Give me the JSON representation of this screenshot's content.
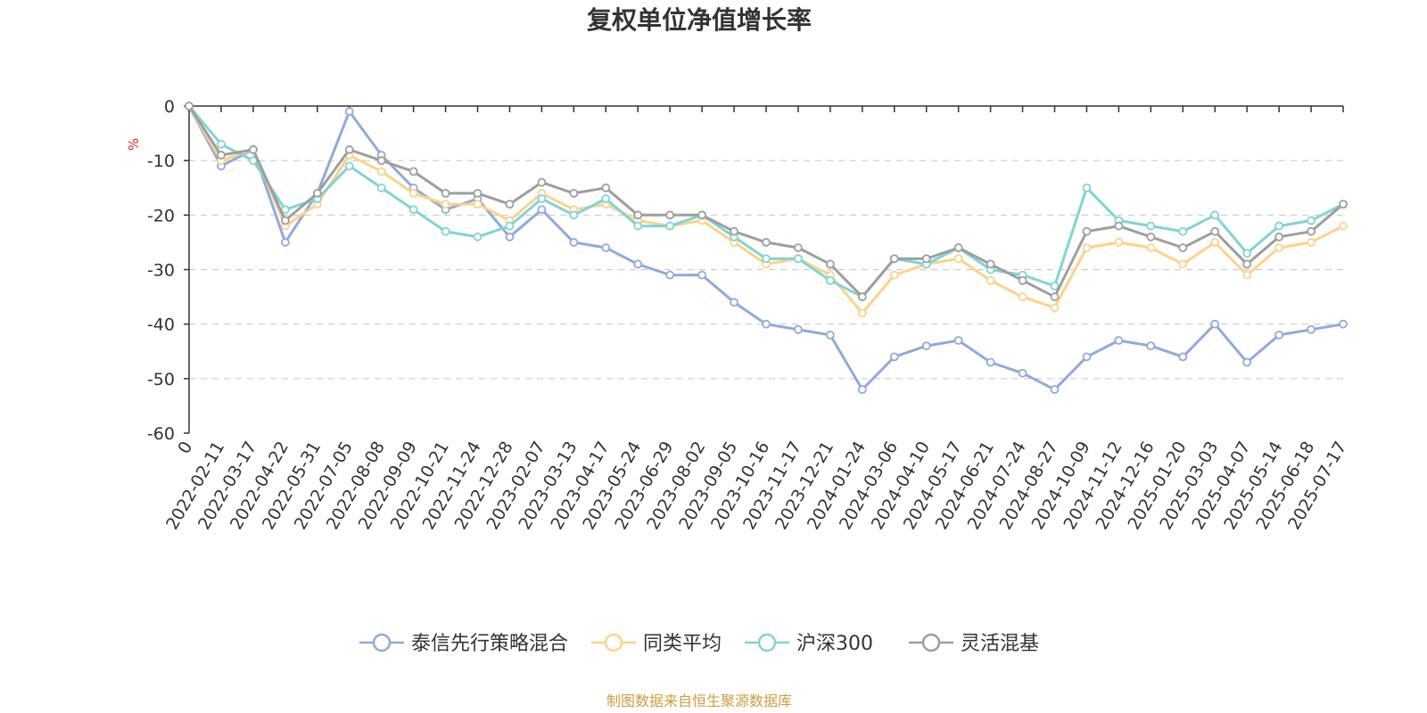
{
  "chart_data": {
    "type": "line",
    "title": "复权单位净值增长率",
    "ylabel": "%",
    "ylim": [
      -60,
      0
    ],
    "yticks": [
      0,
      -10,
      -20,
      -30,
      -40,
      -50,
      -60
    ],
    "categories": [
      "0",
      "2022-02-11",
      "2022-03-17",
      "2022-04-22",
      "2022-05-31",
      "2022-07-05",
      "2022-08-08",
      "2022-09-09",
      "2022-10-21",
      "2022-11-24",
      "2022-12-28",
      "2023-02-07",
      "2023-03-13",
      "2023-04-17",
      "2023-05-24",
      "2023-06-29",
      "2023-08-02",
      "2023-09-05",
      "2023-10-16",
      "2023-11-17",
      "2023-12-21",
      "2024-01-24",
      "2024-03-06",
      "2024-04-10",
      "2024-05-17",
      "2024-06-21",
      "2024-07-24",
      "2024-08-27",
      "2024-10-09",
      "2024-11-12",
      "2024-12-16",
      "2025-01-20",
      "2025-03-03",
      "2025-04-07",
      "2025-05-14",
      "2025-06-18",
      "2025-07-17"
    ],
    "grid": "horizontal dashed",
    "legend_position": "bottom",
    "series": [
      {
        "name": "泰信先行策略混合",
        "color": "#8faadc",
        "values": [
          0,
          -11,
          -8,
          -25,
          -16,
          -1,
          -9,
          -15,
          -19,
          -17,
          -24,
          -19,
          -25,
          -26,
          -29,
          -31,
          -31,
          -36,
          -40,
          -41,
          -42,
          -52,
          -46,
          -44,
          -43,
          -47,
          -49,
          -52,
          -46,
          -43,
          -44,
          -46,
          -40,
          -47,
          -42,
          -41,
          -40
        ]
      },
      {
        "name": "同类平均",
        "color": "#fdd28a",
        "values": [
          0,
          -10,
          -8,
          -22,
          -18,
          -9,
          -12,
          -16,
          -18,
          -18,
          -21,
          -16,
          -19,
          -18,
          -21,
          -22,
          -21,
          -25,
          -29,
          -28,
          -31,
          -38,
          -31,
          -29,
          -28,
          -32,
          -35,
          -37,
          -26,
          -25,
          -26,
          -29,
          -25,
          -31,
          -26,
          -25,
          -22
        ]
      },
      {
        "name": "沪深300",
        "color": "#80d4d4",
        "values": [
          0,
          -7,
          -10,
          -19,
          -17,
          -11,
          -15,
          -19,
          -23,
          -24,
          -22,
          -17,
          -20,
          -17,
          -22,
          -22,
          -20,
          -24,
          -28,
          -28,
          -32,
          -35,
          -28,
          -29,
          -26,
          -30,
          -31,
          -33,
          -15,
          -21,
          -22,
          -23,
          -20,
          -27,
          -22,
          -21,
          -18
        ]
      },
      {
        "name": "灵活混基",
        "color": "#9e9e9e",
        "values": [
          0,
          -9,
          -8,
          -21,
          -16,
          -8,
          -10,
          -12,
          -16,
          -16,
          -18,
          -14,
          -16,
          -15,
          -20,
          -20,
          -20,
          -23,
          -25,
          -26,
          -29,
          -35,
          -28,
          -28,
          -26,
          -29,
          -32,
          -35,
          -23,
          -22,
          -24,
          -26,
          -23,
          -29,
          -24,
          -23,
          -18
        ]
      }
    ]
  },
  "legend": {
    "items": [
      {
        "label": "泰信先行策略混合",
        "color": "#8faadc"
      },
      {
        "label": "同类平均",
        "color": "#fdd28a"
      },
      {
        "label": "沪深300",
        "color": "#80d4d4"
      },
      {
        "label": "灵活混基",
        "color": "#9e9e9e"
      }
    ]
  },
  "footer": {
    "source_text": "制图数据来自恒生聚源数据库",
    "source_color": "#c8a040",
    "unit_color": "#dd2222"
  }
}
